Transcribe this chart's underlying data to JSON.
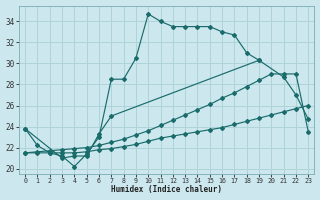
{
  "xlabel": "Humidex (Indice chaleur)",
  "ylabel": "",
  "bg_color": "#cce8ee",
  "grid_color": "#aed4da",
  "line_color": "#1a6b6b",
  "xlim": [
    -0.5,
    23.5
  ],
  "ylim": [
    19.5,
    35.5
  ],
  "yticks": [
    20,
    22,
    24,
    26,
    28,
    30,
    32,
    34
  ],
  "xticks": [
    0,
    1,
    2,
    3,
    4,
    5,
    6,
    7,
    8,
    9,
    10,
    11,
    12,
    13,
    14,
    15,
    16,
    17,
    18,
    19,
    20,
    21,
    22,
    23
  ],
  "series": [
    {
      "x": [
        0,
        1,
        2,
        3,
        4,
        5,
        6,
        7,
        8,
        9,
        10,
        11,
        12,
        13,
        14,
        15,
        16,
        17,
        18,
        19
      ],
      "y": [
        23.8,
        22.2,
        21.5,
        21.2,
        20.2,
        21.4,
        23.0,
        28.5,
        28.5,
        30.5,
        34.7,
        34.0,
        33.5,
        33.5,
        33.5,
        33.5,
        33.0,
        32.7,
        31.0,
        30.3
      ]
    },
    {
      "x": [
        0,
        3,
        4,
        5,
        6,
        7,
        19,
        21,
        22,
        23
      ],
      "y": [
        23.8,
        21.0,
        21.2,
        21.2,
        23.3,
        25.0,
        30.3,
        28.7,
        27.0,
        24.7
      ]
    },
    {
      "x": [
        0,
        1,
        2,
        3,
        4,
        5,
        6,
        7,
        8,
        9,
        10,
        11,
        12,
        13,
        14,
        15,
        16,
        17,
        18,
        19,
        20,
        21,
        22,
        23
      ],
      "y": [
        21.5,
        21.5,
        21.5,
        21.5,
        21.5,
        21.6,
        21.8,
        21.9,
        22.1,
        22.3,
        22.6,
        22.9,
        23.1,
        23.3,
        23.5,
        23.7,
        23.9,
        24.2,
        24.5,
        24.8,
        25.1,
        25.4,
        25.7,
        26.0
      ]
    },
    {
      "x": [
        0,
        1,
        2,
        3,
        4,
        5,
        6,
        7,
        8,
        9,
        10,
        11,
        12,
        13,
        14,
        15,
        16,
        17,
        18,
        19,
        20,
        21,
        22,
        23
      ],
      "y": [
        21.5,
        21.6,
        21.7,
        21.8,
        21.9,
        22.0,
        22.2,
        22.5,
        22.8,
        23.2,
        23.6,
        24.1,
        24.6,
        25.1,
        25.6,
        26.1,
        26.7,
        27.2,
        27.8,
        28.4,
        29.0,
        29.0,
        29.0,
        23.5
      ]
    }
  ]
}
